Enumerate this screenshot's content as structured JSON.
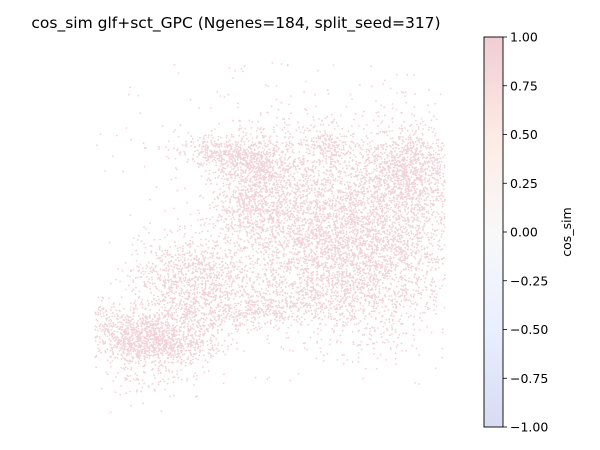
{
  "chart_data": {
    "type": "scatter",
    "title": "cos_sim glf+sct_GPC (Ngenes=184, split_seed=317)",
    "xlabel": "",
    "ylabel": "",
    "axes_visible": false,
    "point_color": "#b40426",
    "point_alpha": 0.18,
    "colorbar": {
      "label": "cos_sim",
      "range": [
        -1.0,
        1.0
      ],
      "ticks": [
        "1.00",
        "0.75",
        "0.50",
        "0.25",
        "0.00",
        "−0.25",
        "−0.50",
        "−0.75",
        "−1.00"
      ],
      "tick_values": [
        1.0,
        0.75,
        0.5,
        0.25,
        0.0,
        -0.25,
        -0.5,
        -0.75,
        -1.0
      ],
      "colormap": "coolwarm",
      "color_low": "#3b4cc0",
      "color_mid": "#dddddd",
      "color_high": "#b40426",
      "alpha": 0.2
    }
  }
}
